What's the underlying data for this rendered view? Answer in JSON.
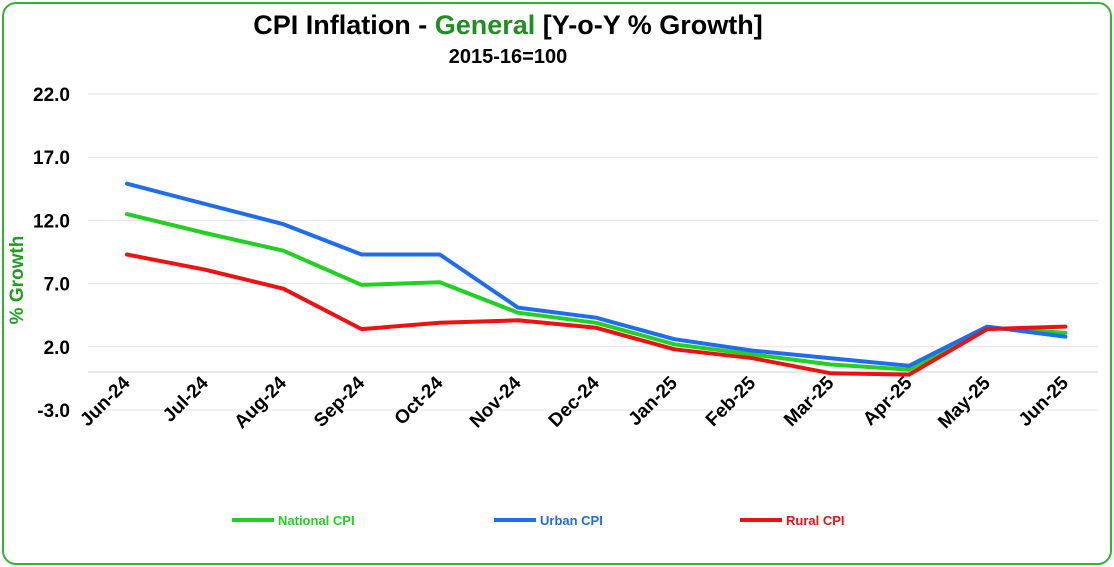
{
  "title": {
    "prefix": "CPI Inflation - ",
    "accent": "General",
    "suffix": " [Y-o-Y % Growth]"
  },
  "subtitle": "2015-16=100",
  "colors": {
    "national": "#22d022",
    "urban": "#1e6cf0",
    "rural": "#ee1111",
    "accent": "#1f8f1f",
    "border": "#2fb52f"
  },
  "chart_data": {
    "type": "line",
    "ylabel": "% Growth",
    "xlabel": "",
    "categories": [
      "Jun-24",
      "Jul-24",
      "Aug-24",
      "Sep-24",
      "Oct-24",
      "Nov-24",
      "Dec-24",
      "Jan-25",
      "Feb-25",
      "Mar-25",
      "Apr-25",
      "May-25",
      "Jun-25"
    ],
    "ylim": [
      -3.0,
      22.0
    ],
    "yticks": [
      "22.0",
      "17.0",
      "12.0",
      "7.0",
      "2.0",
      "-3.0"
    ],
    "grid": true,
    "legend": "bottom",
    "series": [
      {
        "name": "National CPI",
        "color": "#22d022",
        "values": [
          12.5,
          11.0,
          9.6,
          6.9,
          7.1,
          4.7,
          3.9,
          2.2,
          1.4,
          0.6,
          0.2,
          3.5,
          3.1
        ]
      },
      {
        "name": "Urban CPI",
        "color": "#1e6cf0",
        "values": [
          14.9,
          13.3,
          11.7,
          9.3,
          9.3,
          5.1,
          4.3,
          2.6,
          1.7,
          1.1,
          0.5,
          3.6,
          2.8
        ]
      },
      {
        "name": "Rural CPI",
        "color": "#ee1111",
        "values": [
          9.3,
          8.1,
          6.6,
          3.4,
          3.9,
          4.1,
          3.5,
          1.8,
          1.1,
          -0.1,
          -0.2,
          3.4,
          3.6
        ]
      }
    ]
  }
}
